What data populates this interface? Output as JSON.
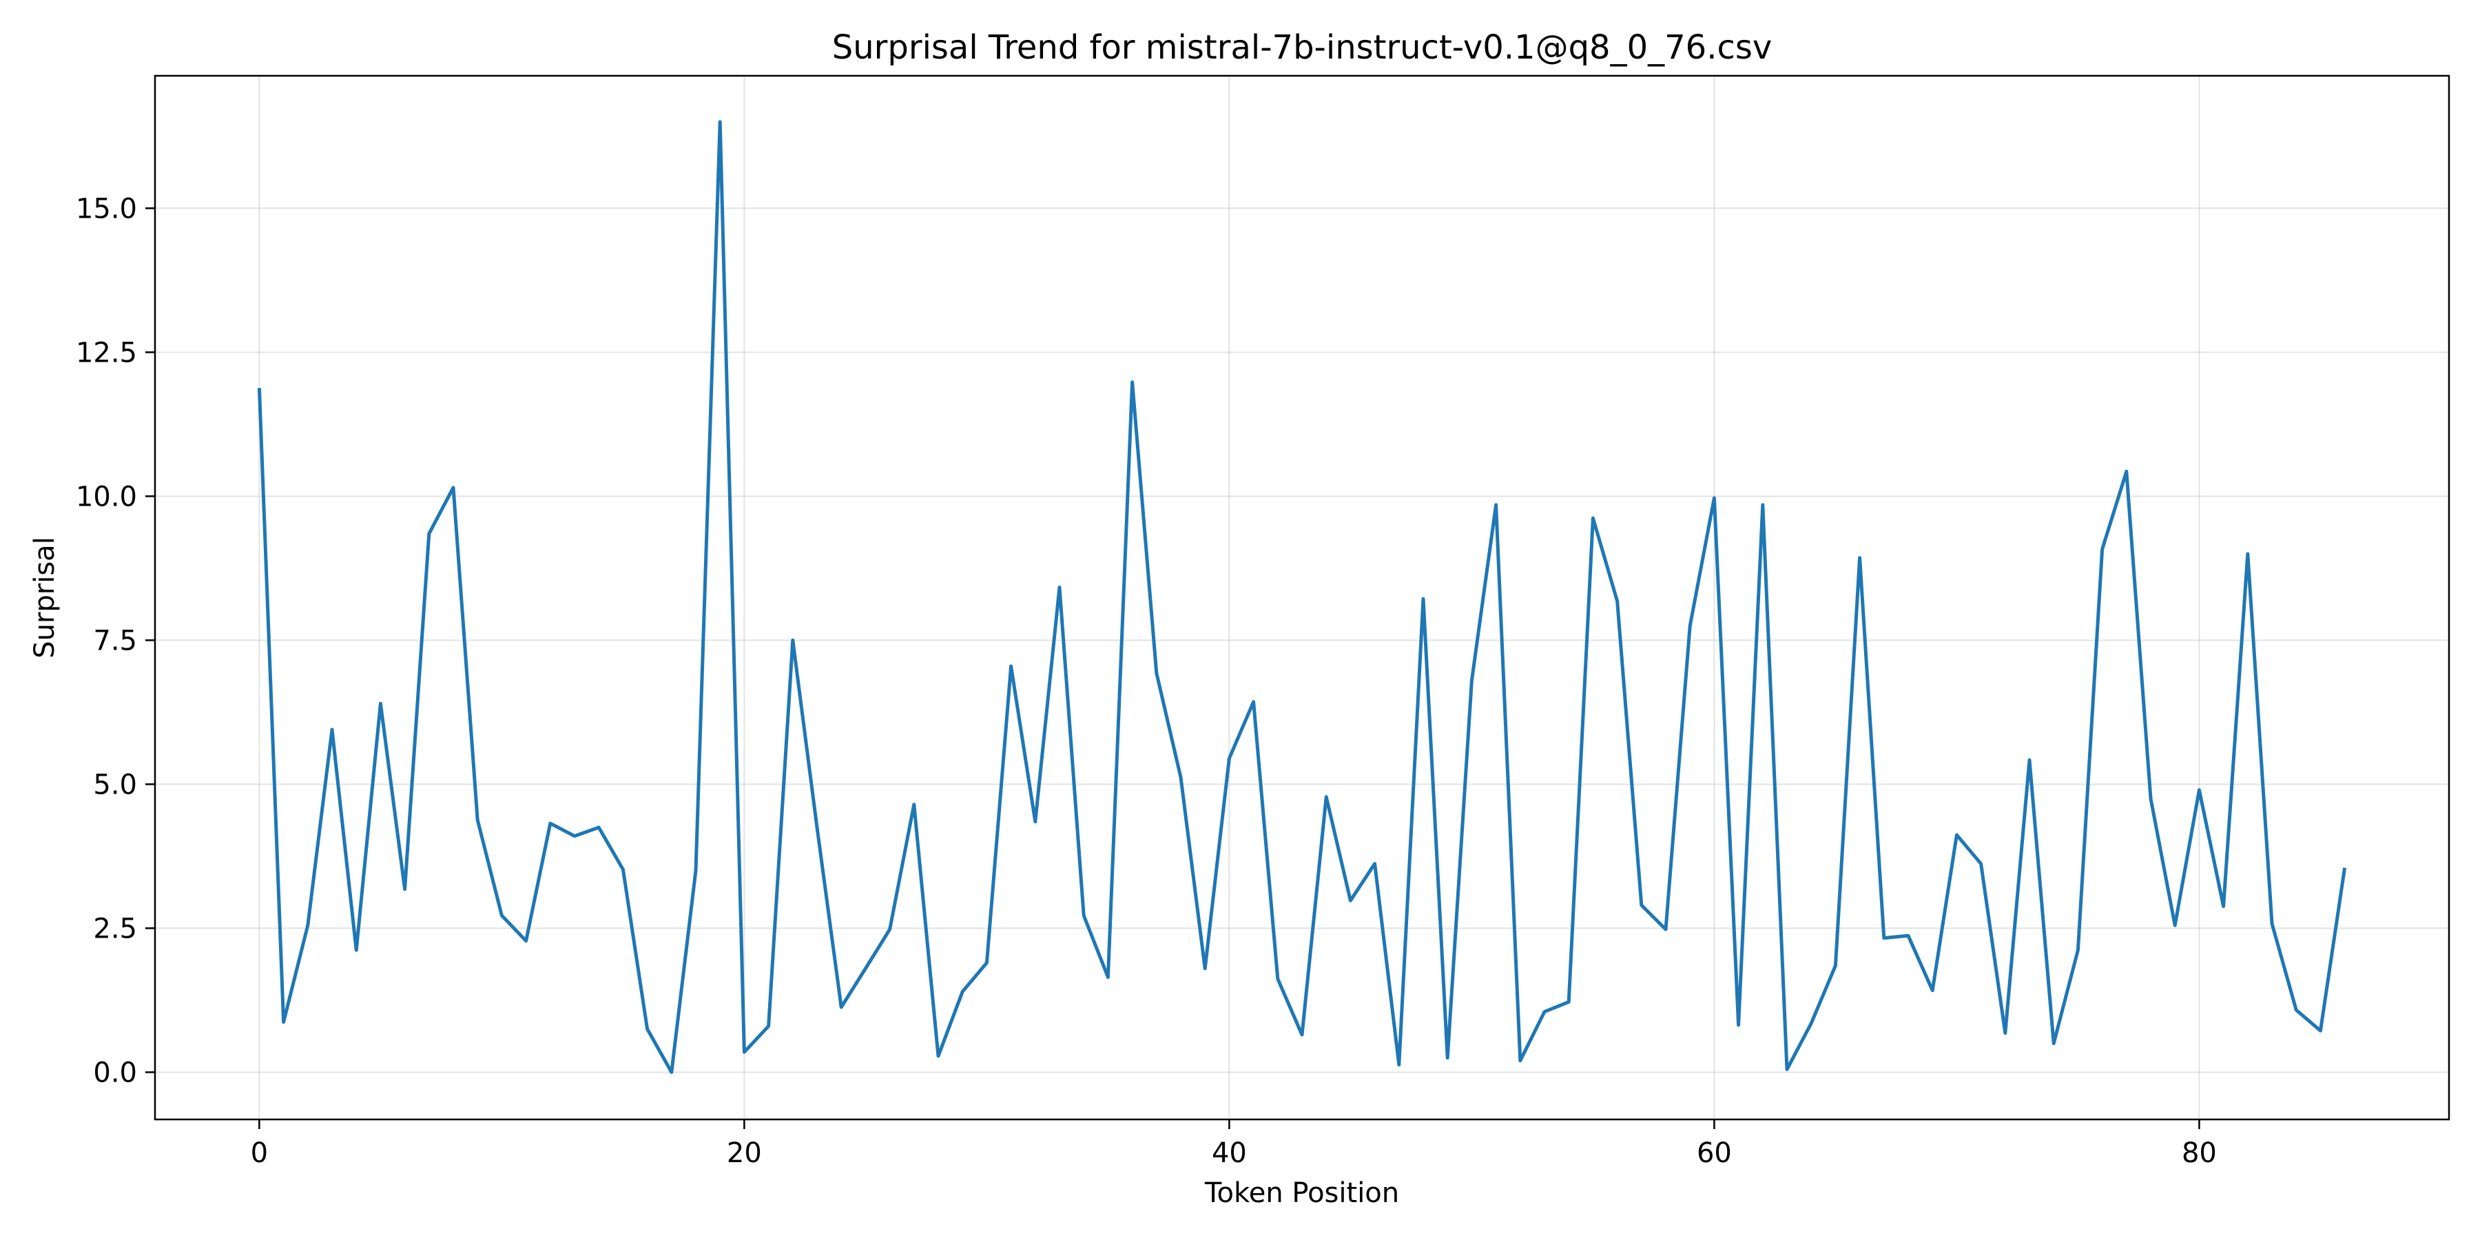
{
  "chart_data": {
    "type": "line",
    "title": "Surprisal Trend for mistral-7b-instruct-v0.1@q8_0_76.csv",
    "xlabel": "Token Position",
    "ylabel": "Surprisal",
    "xlim": [
      -4.3,
      90.3
    ],
    "ylim": [
      -0.82,
      17.3
    ],
    "xticks": [
      0,
      20,
      40,
      60,
      80
    ],
    "xtick_labels": [
      "0",
      "20",
      "40",
      "60",
      "80"
    ],
    "yticks": [
      0.0,
      2.5,
      5.0,
      7.5,
      10.0,
      12.5,
      15.0
    ],
    "ytick_labels": [
      "0.0",
      "2.5",
      "5.0",
      "7.5",
      "10.0",
      "12.5",
      "15.0"
    ],
    "grid": true,
    "line_color": "#1f77b4",
    "series": [
      {
        "x": [
          0,
          1,
          2,
          3,
          4,
          5,
          6,
          7,
          8,
          9,
          10,
          11,
          12,
          13,
          14,
          15,
          16,
          17,
          18,
          19,
          20,
          21,
          22,
          23,
          24,
          25,
          26,
          27,
          28,
          29,
          30,
          31,
          32,
          33,
          34,
          35,
          36,
          37,
          38,
          39,
          40,
          41,
          42,
          43,
          44,
          45,
          46,
          47,
          48,
          49,
          50,
          51,
          52,
          53,
          54,
          55,
          56,
          57,
          58,
          59,
          60,
          61,
          62,
          63,
          64,
          65,
          66,
          67,
          68,
          69,
          70,
          71,
          72,
          73,
          74,
          75,
          76,
          77,
          78,
          79,
          80,
          81,
          82,
          83,
          84,
          85,
          86
        ],
        "values": [
          11.88,
          0.87,
          2.55,
          5.95,
          2.12,
          6.4,
          3.18,
          9.35,
          10.15,
          4.38,
          2.72,
          2.28,
          4.32,
          4.1,
          4.25,
          3.52,
          0.75,
          0.0,
          3.5,
          16.5,
          0.35,
          0.8,
          7.5,
          4.25,
          1.13,
          1.8,
          2.48,
          4.65,
          0.28,
          1.4,
          1.9,
          7.05,
          4.35,
          8.42,
          2.72,
          1.65,
          11.98,
          6.93,
          5.12,
          1.8,
          5.45,
          6.43,
          1.62,
          0.65,
          4.78,
          2.98,
          3.62,
          0.13,
          8.22,
          0.25,
          6.8,
          9.85,
          0.2,
          1.05,
          1.22,
          9.62,
          8.18,
          2.9,
          2.48,
          7.75,
          9.97,
          0.82,
          9.85,
          0.05,
          0.85,
          1.85,
          8.93,
          2.33,
          2.37,
          1.42,
          4.12,
          3.62,
          0.68,
          5.42,
          0.5,
          2.12,
          9.08,
          10.43,
          4.75,
          2.55,
          4.9,
          2.88,
          9.0,
          2.58,
          1.08,
          0.72,
          3.55
        ]
      }
    ]
  }
}
